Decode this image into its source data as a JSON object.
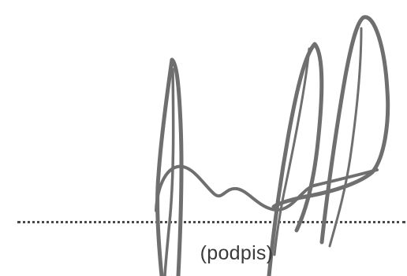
{
  "signature_block": {
    "caption": "(podpis)",
    "signature_image": "handwritten-signature",
    "colors": {
      "ink": "#6f6f6f",
      "dotted_line": "#4a4a4a",
      "caption_text": "#3a3a3a",
      "background": "#ffffff"
    }
  }
}
